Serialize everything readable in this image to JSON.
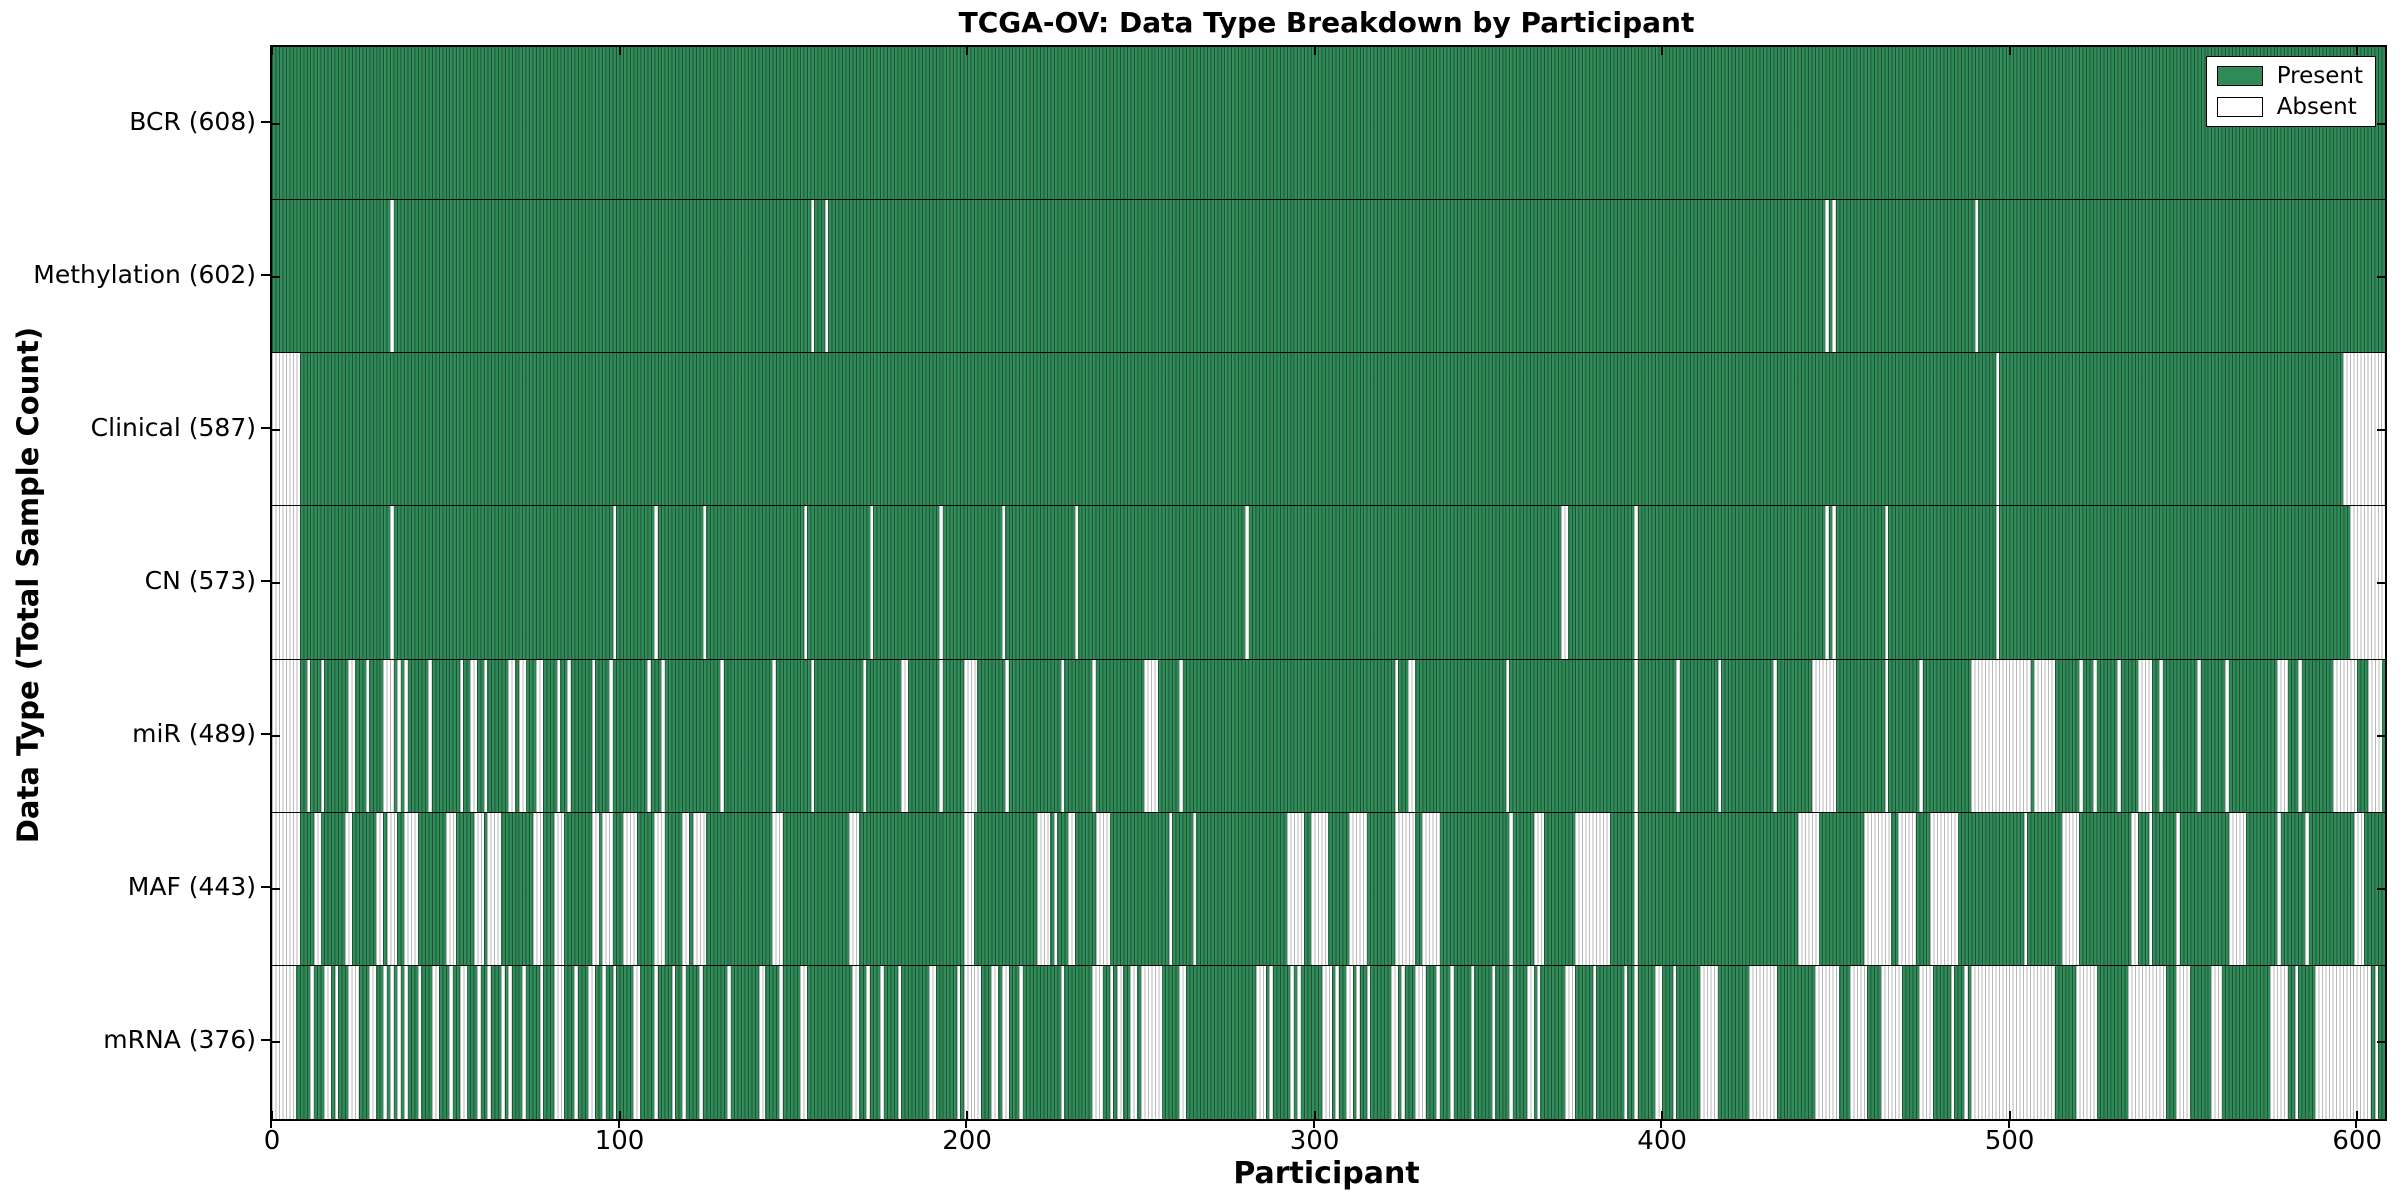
{
  "chart": {
    "title": "TCGA-OV: Data Type Breakdown by Participant",
    "xlabel": "Participant",
    "ylabel": "Data Type (Total Sample Count)"
  },
  "chart_data": {
    "type": "heatmap",
    "title": "TCGA-OV: Data Type Breakdown by Participant",
    "xlabel": "Participant",
    "ylabel": "Data Type (Total Sample Count)",
    "xlim": [
      0,
      608
    ],
    "x_ticks": [
      0,
      100,
      200,
      300,
      400,
      500,
      600
    ],
    "n_participants": 608,
    "grid": false,
    "legend_position": "upper right",
    "legend": [
      {
        "label": "Present",
        "color": "#2E8B57"
      },
      {
        "label": "Absent",
        "color": "#FFFFFF"
      }
    ],
    "colors": {
      "present": "#2E8B57",
      "absent": "#FFFFFF",
      "frame": "#000000"
    },
    "rows": [
      {
        "name": "BCR",
        "label": "BCR (608)",
        "present_count": 608,
        "absent_segments": []
      },
      {
        "name": "Methylation",
        "label": "Methylation (602)",
        "present_count": 602,
        "absent_segments": [
          [
            34,
            1
          ],
          [
            155,
            1
          ],
          [
            159,
            1
          ],
          [
            447,
            1
          ],
          [
            449,
            1
          ],
          [
            490,
            1
          ]
        ]
      },
      {
        "name": "Clinical",
        "label": "Clinical (587)",
        "present_count": 587,
        "absent_segments": [
          [
            0,
            8
          ],
          [
            496,
            1
          ],
          [
            596,
            12
          ]
        ]
      },
      {
        "name": "CN",
        "label": "CN (573)",
        "present_count": 573,
        "absent_segments": [
          [
            0,
            8
          ],
          [
            34,
            1
          ],
          [
            98,
            1
          ],
          [
            110,
            1
          ],
          [
            124,
            1
          ],
          [
            153,
            1
          ],
          [
            172,
            1
          ],
          [
            192,
            1
          ],
          [
            210,
            1
          ],
          [
            231,
            1
          ],
          [
            280,
            1
          ],
          [
            371,
            2
          ],
          [
            392,
            1
          ],
          [
            447,
            1
          ],
          [
            449,
            1
          ],
          [
            464,
            1
          ],
          [
            496,
            1
          ],
          [
            598,
            10
          ]
        ]
      },
      {
        "name": "miR",
        "label": "miR (489)",
        "present_count": 489,
        "absent_segments": [
          [
            0,
            8
          ],
          [
            10,
            1
          ],
          [
            14,
            1
          ],
          [
            22,
            2
          ],
          [
            27,
            1
          ],
          [
            32,
            3
          ],
          [
            36,
            1
          ],
          [
            38,
            1
          ],
          [
            45,
            1
          ],
          [
            54,
            1
          ],
          [
            57,
            2
          ],
          [
            61,
            1
          ],
          [
            68,
            2
          ],
          [
            71,
            2
          ],
          [
            76,
            2
          ],
          [
            82,
            1
          ],
          [
            85,
            1
          ],
          [
            92,
            1
          ],
          [
            97,
            1
          ],
          [
            108,
            1
          ],
          [
            112,
            1
          ],
          [
            129,
            1
          ],
          [
            144,
            1
          ],
          [
            155,
            1
          ],
          [
            170,
            1
          ],
          [
            181,
            2
          ],
          [
            192,
            1
          ],
          [
            199,
            4
          ],
          [
            211,
            1
          ],
          [
            227,
            1
          ],
          [
            236,
            1
          ],
          [
            251,
            4
          ],
          [
            261,
            1
          ],
          [
            323,
            1
          ],
          [
            327,
            2
          ],
          [
            355,
            1
          ],
          [
            392,
            1
          ],
          [
            404,
            1
          ],
          [
            416,
            1
          ],
          [
            432,
            1
          ],
          [
            443,
            7
          ],
          [
            464,
            1
          ],
          [
            474,
            1
          ],
          [
            489,
            17
          ],
          [
            507,
            6
          ],
          [
            520,
            1
          ],
          [
            524,
            1
          ],
          [
            531,
            1
          ],
          [
            537,
            4
          ],
          [
            543,
            1
          ],
          [
            554,
            1
          ],
          [
            562,
            1
          ],
          [
            577,
            3
          ],
          [
            583,
            1
          ],
          [
            593,
            7
          ],
          [
            603,
            4
          ]
        ]
      },
      {
        "name": "MAF",
        "label": "MAF (443)",
        "present_count": 443,
        "absent_segments": [
          [
            0,
            8
          ],
          [
            12,
            2
          ],
          [
            21,
            2
          ],
          [
            30,
            2
          ],
          [
            33,
            3
          ],
          [
            38,
            4
          ],
          [
            50,
            3
          ],
          [
            58,
            3
          ],
          [
            62,
            4
          ],
          [
            75,
            3
          ],
          [
            81,
            3
          ],
          [
            92,
            2
          ],
          [
            95,
            3
          ],
          [
            101,
            4
          ],
          [
            110,
            3
          ],
          [
            118,
            2
          ],
          [
            121,
            4
          ],
          [
            144,
            3
          ],
          [
            166,
            3
          ],
          [
            199,
            3
          ],
          [
            220,
            4
          ],
          [
            225,
            1
          ],
          [
            229,
            2
          ],
          [
            237,
            4
          ],
          [
            258,
            1
          ],
          [
            265,
            1
          ],
          [
            292,
            5
          ],
          [
            299,
            5
          ],
          [
            310,
            5
          ],
          [
            323,
            6
          ],
          [
            331,
            5
          ],
          [
            356,
            1
          ],
          [
            363,
            3
          ],
          [
            375,
            10
          ],
          [
            392,
            1
          ],
          [
            439,
            6
          ],
          [
            458,
            8
          ],
          [
            468,
            5
          ],
          [
            477,
            8
          ],
          [
            504,
            1
          ],
          [
            515,
            5
          ],
          [
            535,
            2
          ],
          [
            540,
            1
          ],
          [
            548,
            1
          ],
          [
            563,
            5
          ],
          [
            577,
            1
          ],
          [
            585,
            1
          ],
          [
            599,
            3
          ]
        ]
      },
      {
        "name": "mRNA",
        "label": "mRNA (376)",
        "present_count": 376,
        "absent_segments": [
          [
            0,
            7
          ],
          [
            11,
            1
          ],
          [
            15,
            2
          ],
          [
            18,
            1
          ],
          [
            22,
            3
          ],
          [
            28,
            2
          ],
          [
            32,
            1
          ],
          [
            34,
            1
          ],
          [
            36,
            1
          ],
          [
            38,
            1
          ],
          [
            42,
            1
          ],
          [
            46,
            2
          ],
          [
            51,
            1
          ],
          [
            54,
            2
          ],
          [
            59,
            1
          ],
          [
            62,
            1
          ],
          [
            66,
            1
          ],
          [
            68,
            1
          ],
          [
            72,
            1
          ],
          [
            77,
            1
          ],
          [
            81,
            3
          ],
          [
            87,
            1
          ],
          [
            91,
            2
          ],
          [
            95,
            1
          ],
          [
            98,
            1
          ],
          [
            104,
            2
          ],
          [
            110,
            1
          ],
          [
            115,
            1
          ],
          [
            118,
            1
          ],
          [
            123,
            1
          ],
          [
            131,
            1
          ],
          [
            140,
            2
          ],
          [
            146,
            1
          ],
          [
            152,
            2
          ],
          [
            167,
            2
          ],
          [
            171,
            1
          ],
          [
            175,
            1
          ],
          [
            180,
            1
          ],
          [
            189,
            2
          ],
          [
            197,
            1
          ],
          [
            199,
            3
          ],
          [
            202,
            2
          ],
          [
            207,
            2
          ],
          [
            210,
            2
          ],
          [
            215,
            1
          ],
          [
            227,
            1
          ],
          [
            236,
            3
          ],
          [
            241,
            1
          ],
          [
            243,
            2
          ],
          [
            247,
            2
          ],
          [
            250,
            6
          ],
          [
            261,
            2
          ],
          [
            283,
            3
          ],
          [
            287,
            1
          ],
          [
            293,
            1
          ],
          [
            295,
            1
          ],
          [
            302,
            3
          ],
          [
            306,
            1
          ],
          [
            309,
            2
          ],
          [
            312,
            1
          ],
          [
            315,
            1
          ],
          [
            322,
            2
          ],
          [
            325,
            1
          ],
          [
            329,
            2
          ],
          [
            331,
            1
          ],
          [
            335,
            1
          ],
          [
            339,
            1
          ],
          [
            345,
            1
          ],
          [
            351,
            1
          ],
          [
            356,
            1
          ],
          [
            361,
            2
          ],
          [
            364,
            1
          ],
          [
            372,
            3
          ],
          [
            380,
            1
          ],
          [
            389,
            1
          ],
          [
            392,
            1
          ],
          [
            398,
            2
          ],
          [
            403,
            1
          ],
          [
            411,
            5
          ],
          [
            425,
            8
          ],
          [
            444,
            7
          ],
          [
            454,
            5
          ],
          [
            463,
            6
          ],
          [
            474,
            4
          ],
          [
            483,
            1
          ],
          [
            487,
            1
          ],
          [
            489,
            24
          ],
          [
            519,
            6
          ],
          [
            534,
            11
          ],
          [
            548,
            4
          ],
          [
            558,
            3
          ],
          [
            575,
            5
          ],
          [
            582,
            1
          ],
          [
            588,
            16
          ],
          [
            605,
            1
          ]
        ]
      }
    ]
  }
}
